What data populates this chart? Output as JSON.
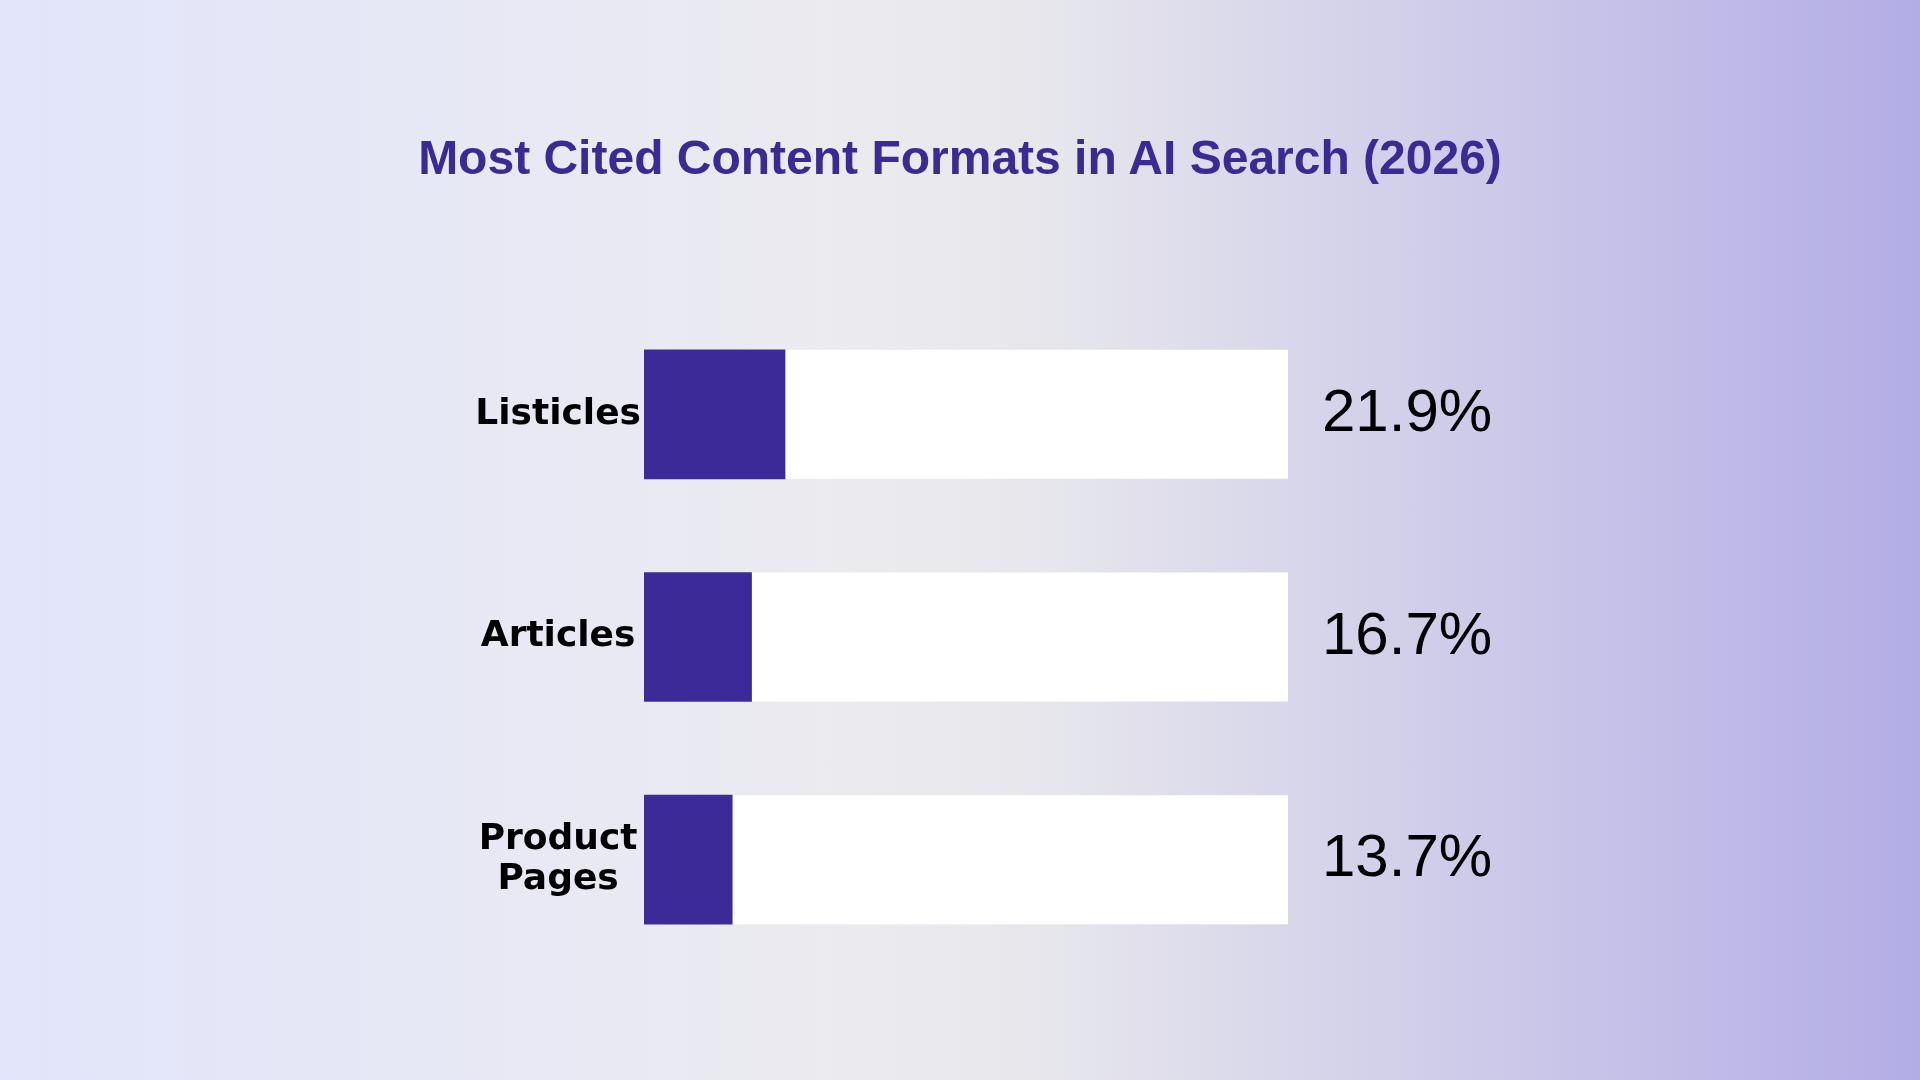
{
  "chart_data": {
    "type": "bar",
    "orientation": "horizontal",
    "title": "Most Cited Content Formats in AI Search (2026)",
    "categories": [
      "Listicles",
      "Articles",
      "Product Pages"
    ],
    "values": [
      21.9,
      16.7,
      13.7
    ],
    "color": "#3c2a98",
    "xlim": [
      0,
      100
    ],
    "value_labels": [
      "21.9%",
      "16.7%",
      "13.7%"
    ],
    "grid": false,
    "legend": false
  }
}
